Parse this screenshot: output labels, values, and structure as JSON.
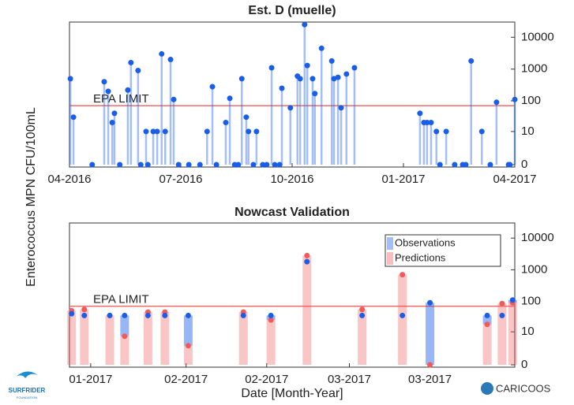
{
  "chart_data": [
    {
      "type": "stem",
      "title": "Est. D (muelle)",
      "ylabel": "Enterococcus MPN CFU/100mL",
      "yscale": "symlog",
      "ylim": [
        0,
        30000
      ],
      "yticks": [
        0,
        10,
        100,
        1000,
        10000
      ],
      "xlim": [
        2016.25,
        2017.25
      ],
      "xticks": [
        {
          "value": 2016.25,
          "label": "04-2016"
        },
        {
          "value": 2016.5,
          "label": "07-2016"
        },
        {
          "value": 2016.75,
          "label": "10-2016"
        },
        {
          "value": 2017.0,
          "label": "01-2017"
        },
        {
          "value": 2017.25,
          "label": "04-2017"
        }
      ],
      "reference_line": {
        "value": 70,
        "label": "EPA LIMIT",
        "color": "#f26a6a"
      },
      "series": [
        {
          "name": "Observations",
          "color": "#1a5ee8",
          "x": [
            2016.252,
            2016.259,
            2016.301,
            2016.328,
            2016.337,
            2016.346,
            2016.351,
            2016.363,
            2016.381,
            2016.388,
            2016.404,
            2016.41,
            2016.422,
            2016.426,
            2016.438,
            2016.447,
            2016.457,
            2016.465,
            2016.477,
            2016.484,
            2016.495,
            2016.518,
            2016.543,
            2016.559,
            2016.571,
            2016.58,
            2016.601,
            2016.61,
            2016.621,
            2016.629,
            2016.637,
            2016.647,
            2016.652,
            2016.663,
            2016.67,
            2016.684,
            2016.693,
            2016.704,
            2016.711,
            2016.722,
            2016.727,
            2016.746,
            2016.762,
            2016.768,
            2016.778,
            2016.784,
            2016.796,
            2016.801,
            2016.816,
            2016.839,
            2016.844,
            2016.853,
            2016.86,
            2016.872,
            2016.89,
            2017.037,
            2017.046,
            2017.053,
            2017.062,
            2017.074,
            2017.082,
            2017.096,
            2017.115,
            2017.133,
            2017.14,
            2017.152,
            2017.176,
            2017.195,
            2017.209,
            2017.236,
            2017.239,
            2017.25
          ],
          "values": [
            500,
            30,
            0,
            400,
            200,
            20,
            40,
            0,
            220,
            1600,
            900,
            0,
            10,
            0,
            10,
            10,
            3000,
            10,
            2000,
            110,
            0,
            0,
            0,
            10,
            280,
            0,
            20,
            120,
            0,
            0,
            500,
            30,
            10,
            0,
            10,
            0,
            0,
            1100,
            0,
            0,
            250,
            60,
            600,
            500,
            25000,
            1300,
            500,
            170,
            4500,
            1800,
            500,
            550,
            60,
            700,
            1100,
            40,
            20,
            20,
            20,
            10,
            0,
            10,
            0,
            0,
            0,
            1800,
            10,
            0,
            90,
            0,
            0,
            110
          ]
        }
      ]
    },
    {
      "type": "validation",
      "title": "Nowcast Validation",
      "xlabel": "Date [Month-Year]",
      "yscale": "symlog",
      "ylim": [
        0,
        30000
      ],
      "yticks": [
        0,
        10,
        100,
        1000,
        10000
      ],
      "xlim": [
        2017.03,
        2017.24
      ],
      "xticks": [
        {
          "value": 2017.04,
          "label": "01-2017"
        },
        {
          "value": 2017.085,
          "label": "02-2017"
        },
        {
          "value": 2017.123,
          "label": "02-2017"
        },
        {
          "value": 2017.162,
          "label": "03-2017"
        },
        {
          "value": 2017.2,
          "label": "03-2017"
        }
      ],
      "reference_line": {
        "value": 70,
        "label": "EPA LIMIT",
        "color": "#f26a6a"
      },
      "x": [
        2017.031,
        2017.037,
        2017.049,
        2017.056,
        2017.067,
        2017.075,
        2017.086,
        2017.112,
        2017.125,
        2017.142,
        2017.168,
        2017.187,
        2017.2,
        2017.227,
        2017.234,
        2017.239
      ],
      "series": [
        {
          "name": "Observations",
          "color": "#1a5ee8",
          "values": [
            40,
            35,
            35,
            35,
            35,
            35,
            35,
            35,
            35,
            1800,
            35,
            35,
            90,
            35,
            35,
            110
          ]
        },
        {
          "name": "Predictions",
          "color": "#f25a5a",
          "values": [
            50,
            55,
            35,
            7,
            45,
            45,
            3,
            45,
            25,
            2800,
            55,
            700,
            0,
            18,
            85,
            90
          ]
        }
      ]
    }
  ],
  "logos": [
    "SURFRIDER",
    "FOUNDATION",
    "CARICOOS"
  ]
}
